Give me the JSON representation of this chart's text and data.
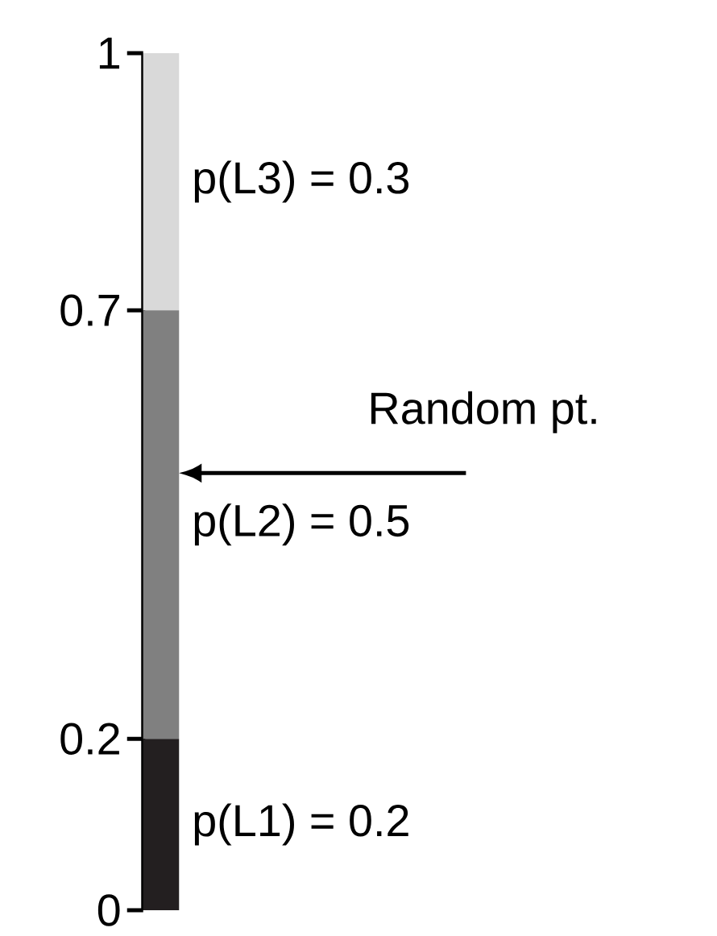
{
  "chart_data": {
    "type": "bar",
    "stacked": true,
    "categories": [
      null
    ],
    "series": [
      {
        "name": "p(L1) = 0.2",
        "color": "#231f20",
        "values": [
          0.2
        ]
      },
      {
        "name": "p(L2) = 0.5",
        "color": "#808080",
        "values": [
          0.5
        ]
      },
      {
        "name": "p(L3) = 0.3",
        "color": "#d9d9d9",
        "values": [
          0.3
        ]
      }
    ],
    "ylim": [
      0,
      1
    ],
    "yticks": [
      0,
      0.2,
      0.7,
      1
    ],
    "annotations": [
      "Random pt."
    ]
  }
}
